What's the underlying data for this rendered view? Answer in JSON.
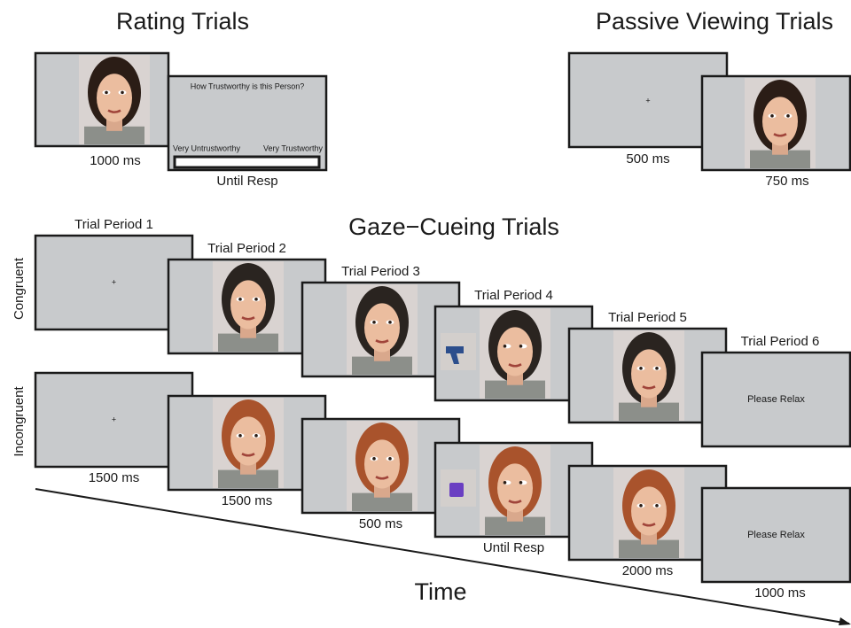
{
  "rating_trials": {
    "title": "Rating Trials",
    "face_duration": "1000 ms",
    "question": "How Trustworthy is this Person?",
    "left_anchor": "Very Untrustworthy",
    "right_anchor": "Very Trustworthy",
    "response_duration": "Until Resp"
  },
  "passive_viewing_trials": {
    "title": "Passive Viewing Trials",
    "fixation": "+",
    "fixation_duration": "500 ms",
    "face_duration": "750 ms"
  },
  "gaze_cueing_trials": {
    "title": "Gaze−Cueing Trials",
    "periods": [
      "Trial Period 1",
      "Trial Period 2",
      "Trial Period 3",
      "Trial Period 4",
      "Trial Period 5",
      "Trial Period 6"
    ],
    "conditions": [
      {
        "label": "Congruent",
        "fixation": "+",
        "end_text": "Please Relax"
      },
      {
        "label": "Incongruent",
        "fixation": "+",
        "end_text": "Please Relax"
      }
    ],
    "durations": [
      "1500 ms",
      "1500 ms",
      "500 ms",
      "Until Resp",
      "2000 ms",
      "1000 ms"
    ]
  },
  "time_label": "Time"
}
